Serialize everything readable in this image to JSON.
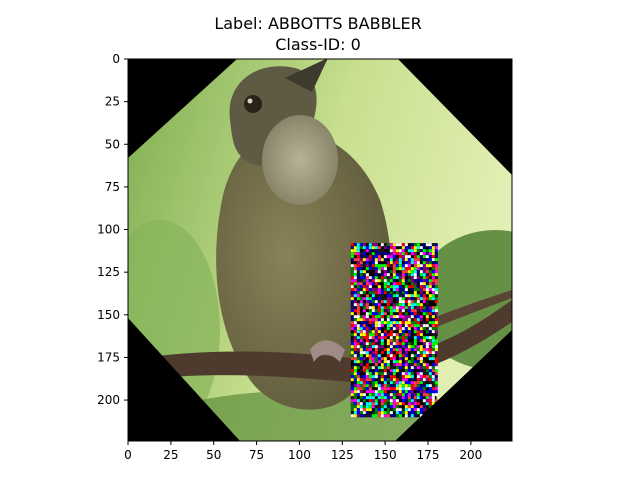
{
  "figure": {
    "title_line1": "Label: ABBOTTS BABBLER",
    "title_line2": "Class-ID: 0"
  },
  "image": {
    "subject": "olive-brown babbler bird perched on a branch",
    "axis_unit": "pixels",
    "x_range": [
      0,
      224
    ],
    "y_range": [
      0,
      224
    ],
    "x_ticks": [
      0,
      25,
      50,
      75,
      100,
      125,
      150,
      175,
      200
    ],
    "y_ticks": [
      0,
      25,
      50,
      75,
      100,
      125,
      150,
      175,
      200
    ],
    "corner_mask_color": "#000000",
    "noise_patch": {
      "x": [
        130,
        180
      ],
      "y": [
        108,
        210
      ]
    },
    "colors": {
      "background_light": "#dbe9a8",
      "background_mid": "#9cc46a",
      "background_dark": "#5f8f3a",
      "bird_body": "#6f6a48",
      "bird_head": "#5d5a45",
      "bird_throat": "#a9a48a",
      "branch": "#4e3b2e"
    }
  }
}
